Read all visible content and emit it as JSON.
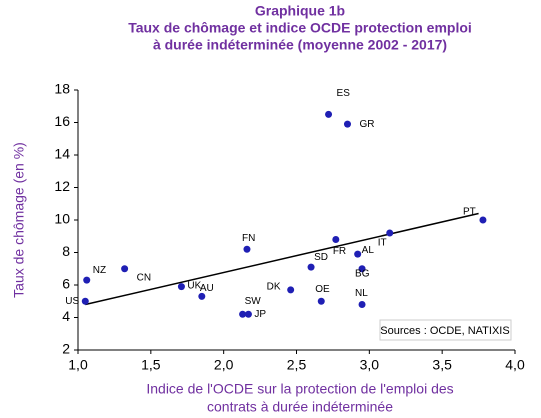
{
  "chart_data": {
    "type": "scatter",
    "title": [
      "Graphique 1b",
      "Taux de chômage et indice OCDE protection emploi",
      "à durée indéterminée (moyenne 2002 - 2017)"
    ],
    "xlabel": [
      "Indice de l'OCDE sur la protection de l'emploi des",
      "contrats à durée indéterminée"
    ],
    "ylabel": "Taux de chômage (en %)",
    "annotation": "Sources : OCDE, NATIXIS",
    "color": "#1f1fb4",
    "labels": [
      "US",
      "NZ",
      "CN",
      "UK",
      "AU",
      "FN",
      "SW",
      "JP",
      "DK",
      "SD",
      "FR",
      "OE",
      "ES",
      "GR",
      "AL",
      "BG",
      "NL",
      "IT",
      "PT"
    ],
    "x": [
      1.05,
      1.06,
      1.32,
      1.71,
      1.85,
      2.16,
      2.13,
      2.17,
      2.46,
      2.6,
      2.77,
      2.67,
      2.72,
      2.85,
      2.92,
      2.95,
      2.95,
      3.14,
      3.78
    ],
    "values": [
      5.0,
      6.3,
      7.0,
      5.9,
      5.3,
      8.2,
      4.2,
      4.2,
      5.7,
      7.1,
      8.8,
      5.0,
      16.5,
      15.9,
      7.9,
      7.0,
      4.8,
      9.2,
      10.0
    ],
    "trendline": {
      "x": [
        1.05,
        3.75
      ],
      "values": [
        4.8,
        10.4
      ]
    },
    "xlim": [
      1,
      4
    ],
    "ylim": [
      2,
      18
    ],
    "xticks": [
      {
        "value": 1,
        "label": "1,0"
      },
      {
        "value": 1.5,
        "label": "1,5"
      },
      {
        "value": 2,
        "label": "2,0"
      },
      {
        "value": 2.5,
        "label": "2,5"
      },
      {
        "value": 3,
        "label": "3,0"
      },
      {
        "value": 3.5,
        "label": "3,5"
      },
      {
        "value": 4,
        "label": "4,0"
      }
    ],
    "yticks": [
      2,
      4,
      6,
      8,
      10,
      12,
      14,
      16,
      18
    ]
  }
}
